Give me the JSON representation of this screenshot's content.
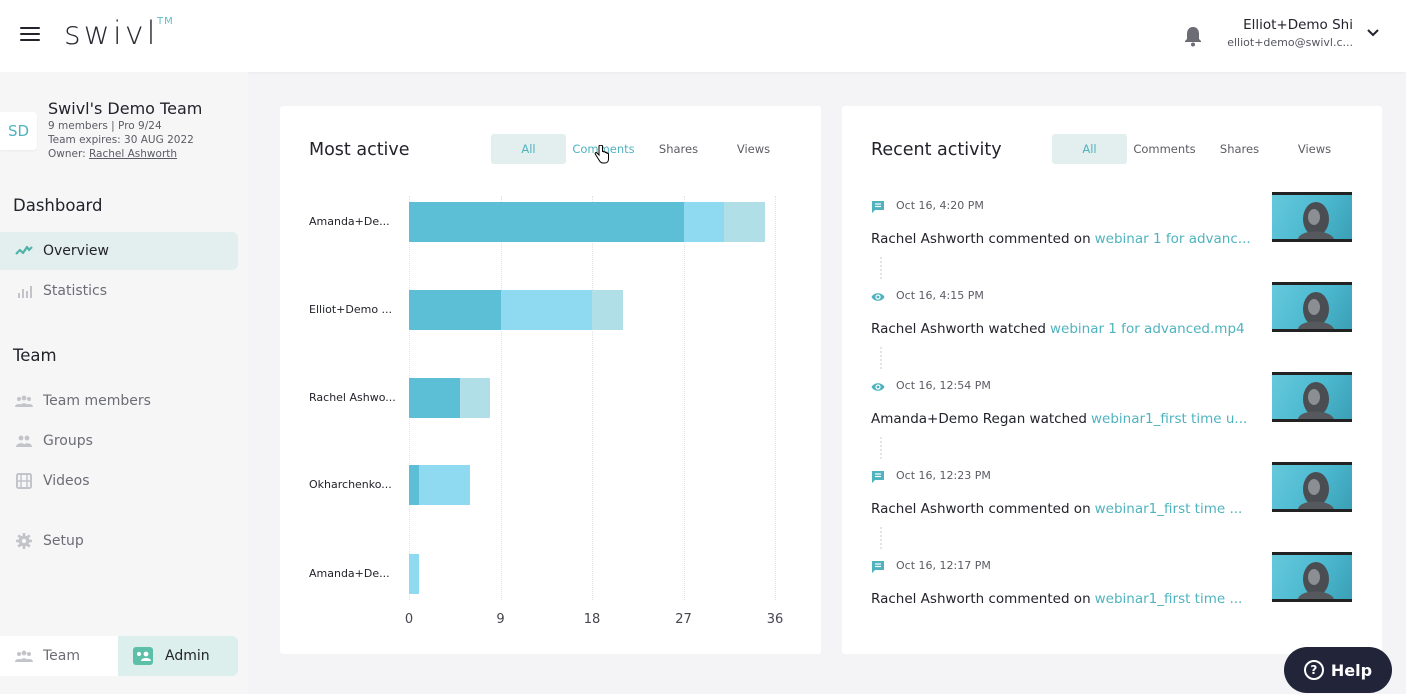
{
  "header": {
    "logo": "swivl",
    "logo_tm": "TM",
    "user_name": "Elliot+Demo Shi",
    "user_email": "elliot+demo@swivl.c..."
  },
  "sidebar": {
    "team": {
      "initials": "SD",
      "name": "Swivl's Demo Team",
      "members": "9 members | Pro 9/24",
      "expires": "Team expires: 30 AUG 2022",
      "owner_label": "Owner: ",
      "owner_name": "Rachel Ashworth"
    },
    "sections": [
      {
        "title": "Dashboard",
        "items": [
          {
            "label": "Overview",
            "icon": "activity-icon",
            "active": true
          },
          {
            "label": "Statistics",
            "icon": "bar-chart-icon",
            "active": false
          }
        ]
      },
      {
        "title": "Team",
        "items": [
          {
            "label": "Team members",
            "icon": "people-icon",
            "active": false
          },
          {
            "label": "Groups",
            "icon": "group-icon",
            "active": false
          },
          {
            "label": "Videos",
            "icon": "film-icon",
            "active": false
          },
          {
            "label": "Setup",
            "icon": "gear-icon",
            "active": false
          }
        ]
      }
    ],
    "bottom_tabs": {
      "team": "Team",
      "admin": "Admin"
    }
  },
  "most_active": {
    "title": "Most active",
    "filters": [
      "All",
      "Comments",
      "Shares",
      "Views"
    ],
    "active_filter": "All"
  },
  "recent_activity": {
    "title": "Recent activity",
    "filters": [
      "All",
      "Comments",
      "Shares",
      "Views"
    ],
    "active_filter": "All",
    "items": [
      {
        "type": "comment",
        "icon": "comment-icon",
        "time": "Oct 16, 4:20 PM",
        "text": "Rachel Ashworth commented on",
        "link": "webinar 1 for advanc..."
      },
      {
        "type": "view",
        "icon": "eye-icon",
        "time": "Oct 16, 4:15 PM",
        "text": "Rachel Ashworth watched",
        "link": "webinar 1 for advanced.mp4"
      },
      {
        "type": "view",
        "icon": "eye-icon",
        "time": "Oct 16, 12:54 PM",
        "text": "Amanda+Demo Regan watched",
        "link": "webinar1_first time u..."
      },
      {
        "type": "comment",
        "icon": "comment-icon",
        "time": "Oct 16, 12:23 PM",
        "text": "Rachel Ashworth commented on",
        "link": "webinar1_first time ..."
      },
      {
        "type": "comment",
        "icon": "comment-icon",
        "time": "Oct 16, 12:17 PM",
        "text": "Rachel Ashworth commented on",
        "link": "webinar1_first time ..."
      }
    ]
  },
  "help": {
    "label": "Help"
  },
  "colors": {
    "accent": "#4fb3bf",
    "comments": "#5dbfd6",
    "views": "#8fdaf0",
    "shares": "#b0dfe8"
  },
  "chart_data": {
    "type": "bar",
    "orientation": "horizontal",
    "stacked": true,
    "title": "Most active",
    "categories": [
      "Amanda+De...",
      "Elliot+Demo ...",
      "Rachel Ashwo...",
      "Okharchenko...",
      "Amanda+De..."
    ],
    "series": [
      {
        "name": "Comments",
        "color": "#5dbfd6",
        "values": [
          27,
          9,
          5,
          1,
          0
        ]
      },
      {
        "name": "Views",
        "color": "#8fdaf0",
        "values": [
          4,
          9,
          0,
          5,
          1
        ]
      },
      {
        "name": "Shares",
        "color": "#b0dfe8",
        "values": [
          4,
          3,
          3,
          0,
          0
        ]
      }
    ],
    "xticks": [
      0,
      9,
      18,
      27,
      36
    ],
    "xlim": [
      0,
      36
    ],
    "xlabel": "",
    "ylabel": "",
    "grid": true
  }
}
